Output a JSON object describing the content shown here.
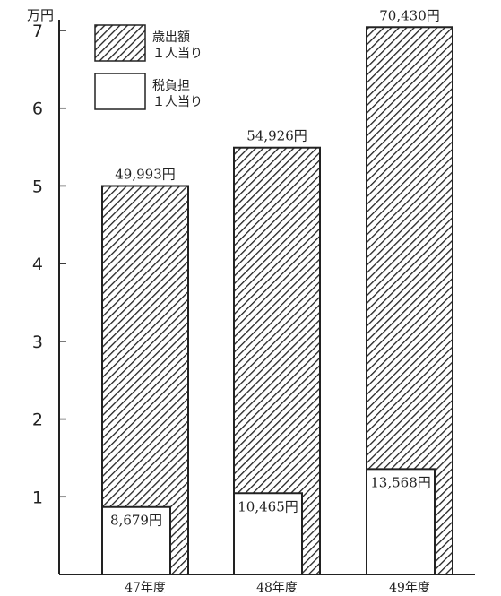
{
  "chart_data": {
    "type": "bar",
    "y_unit": "万円",
    "ylim": [
      0,
      7
    ],
    "yticks": [
      "1",
      "2",
      "3",
      "4",
      "5",
      "6",
      "7"
    ],
    "categories": [
      "47年度",
      "48年度",
      "49年度"
    ],
    "series": [
      {
        "name": "歳出額 １人当り",
        "name_lines": [
          "歳出額",
          "１人当り"
        ],
        "style": "hatched",
        "values": [
          49993,
          54926,
          70430
        ],
        "labels": [
          "49,993円",
          "54,926円",
          "70,430円"
        ]
      },
      {
        "name": "税負担 １人当り",
        "name_lines": [
          "税負担",
          "１人当り"
        ],
        "style": "white",
        "values": [
          8679,
          10465,
          13568
        ],
        "labels": [
          "8,679円",
          "10,465円",
          "13,568円"
        ]
      }
    ],
    "legend_position": "top-left",
    "grid": false
  }
}
